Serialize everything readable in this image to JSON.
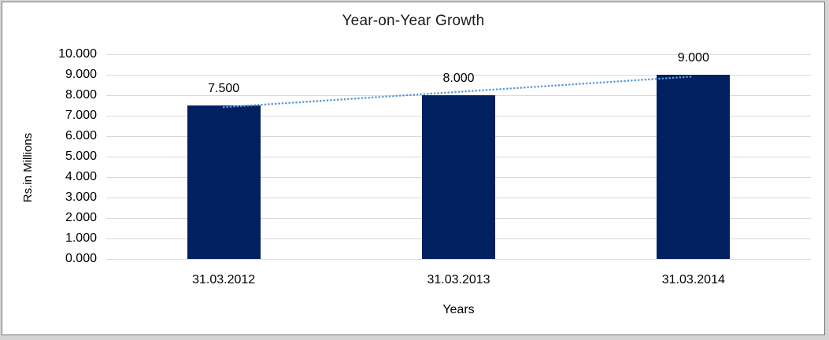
{
  "chart_data": {
    "type": "bar",
    "title": "Year-on-Year Growth",
    "xlabel": "Years",
    "ylabel": "Rs.in Millions",
    "categories": [
      "31.03.2012",
      "31.03.2013",
      "31.03.2014"
    ],
    "values": [
      7500,
      8000,
      9000
    ],
    "value_labels": [
      "7.500",
      "8.000",
      "9.000"
    ],
    "ylim": [
      0,
      10000
    ],
    "ytick_step": 1000,
    "ytick_labels": [
      "0.000",
      "1.000",
      "2.000",
      "3.000",
      "4.000",
      "5.000",
      "6.000",
      "7.000",
      "8.000",
      "9.000",
      "10.000"
    ],
    "grid": true,
    "legend": "none",
    "colors": {
      "bar": "#002060",
      "trendline": "#5b9bd5",
      "gridline": "#d9d9d9",
      "frame_border": "#7a7a7a",
      "outer_background": "#d4d4d4",
      "plot_background": "#ffffff",
      "text": "#000000"
    },
    "trendline": {
      "type": "linear",
      "style": "dotted",
      "fitted_values": [
        7416.7,
        8166.7,
        8916.7
      ]
    }
  }
}
